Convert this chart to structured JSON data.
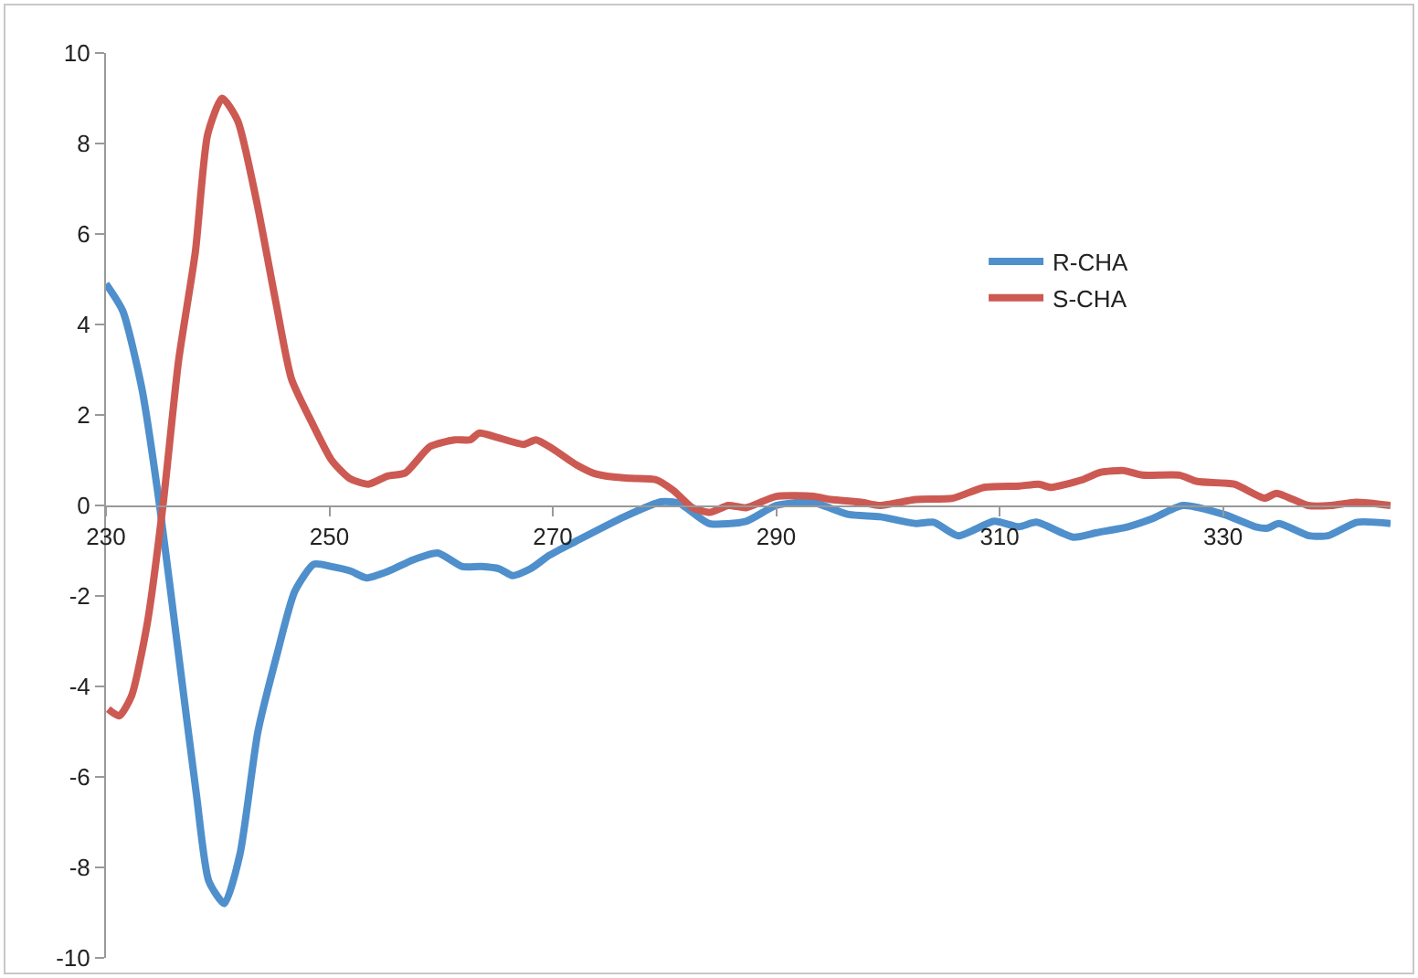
{
  "chart_data": {
    "type": "line",
    "xlim": [
      230,
      345
    ],
    "xticks": [
      230,
      250,
      270,
      290,
      310,
      330
    ],
    "ylim": [
      -10,
      10
    ],
    "yticks": [
      -10,
      -8,
      -6,
      -4,
      -2,
      0,
      2,
      4,
      6,
      8,
      10
    ],
    "grid": false,
    "legend": "right",
    "marker": "none",
    "line_style": "solid",
    "series": [
      {
        "name": "R-CHA",
        "color": "#4f8fcc",
        "x": [
          230,
          231.5,
          233.2,
          234.8,
          236.5,
          238.1,
          239.2,
          240.6,
          242,
          243.6,
          245.3,
          246.9,
          248.6,
          250.2,
          251.9,
          253.3,
          255.3,
          257.5,
          259.7,
          261.9,
          263.6,
          265.2,
          266.4,
          268,
          269.7,
          272,
          276.4,
          279.7,
          281.3,
          284,
          287.3,
          290,
          293.2,
          296.5,
          299.3,
          302.5,
          304.1,
          306.3,
          309.5,
          311.7,
          313.3,
          316.6,
          318.7,
          321.5,
          323.6,
          326.4,
          330.1,
          332.9,
          334,
          335,
          337.7,
          339.4,
          342,
          345
        ],
        "values": [
          4.9,
          4.3,
          2.6,
          0,
          -3.3,
          -6.4,
          -8.3,
          -8.8,
          -7.7,
          -5,
          -3.3,
          -1.9,
          -1.3,
          -1.35,
          -1.45,
          -1.6,
          -1.45,
          -1.2,
          -1.05,
          -1.35,
          -1.35,
          -1.4,
          -1.55,
          -1.4,
          -1.1,
          -0.8,
          -0.25,
          0.08,
          0.05,
          -0.4,
          -0.35,
          0,
          0.07,
          -0.2,
          -0.25,
          -0.4,
          -0.37,
          -0.67,
          -0.35,
          -0.47,
          -0.37,
          -0.7,
          -0.6,
          -0.47,
          -0.3,
          0,
          -0.2,
          -0.47,
          -0.5,
          -0.4,
          -0.67,
          -0.67,
          -0.37,
          -0.4
        ]
      },
      {
        "name": "S-CHA",
        "color": "#cc5a52",
        "x": [
          230.2,
          231.2,
          232.3,
          233.7,
          235.1,
          236.5,
          238,
          239.1,
          240.4,
          241.8,
          243.5,
          245.2,
          246.6,
          248.5,
          250.2,
          251.8,
          253.5,
          255.2,
          256.8,
          259,
          261.2,
          262.6,
          263.4,
          265.1,
          267.4,
          268.5,
          270,
          272.1,
          273.8,
          275.4,
          277,
          279.2,
          280.8,
          282.5,
          284.1,
          285.7,
          287.3,
          290,
          293.3,
          294.9,
          297.6,
          299.3,
          302.5,
          305.8,
          308.6,
          311.8,
          313.5,
          314.6,
          317.3,
          319,
          321.1,
          322.8,
          326.1,
          327.7,
          331,
          333.7,
          334.8,
          337.6,
          339.7,
          341.9,
          345
        ],
        "values": [
          -4.5,
          -4.65,
          -4.2,
          -2.6,
          0,
          3.2,
          5.6,
          8.2,
          9,
          8.5,
          6.7,
          4.5,
          2.8,
          1.8,
          1,
          0.6,
          0.47,
          0.65,
          0.72,
          1.3,
          1.45,
          1.45,
          1.6,
          1.5,
          1.35,
          1.45,
          1.25,
          0.9,
          0.7,
          0.63,
          0.6,
          0.57,
          0.33,
          -0.05,
          -0.15,
          0,
          -0.05,
          0.2,
          0.2,
          0.13,
          0.07,
          0,
          0.13,
          0.16,
          0.4,
          0.43,
          0.47,
          0.4,
          0.56,
          0.73,
          0.77,
          0.67,
          0.67,
          0.53,
          0.47,
          0.16,
          0.27,
          0,
          0,
          0.07,
          0
        ]
      }
    ]
  }
}
